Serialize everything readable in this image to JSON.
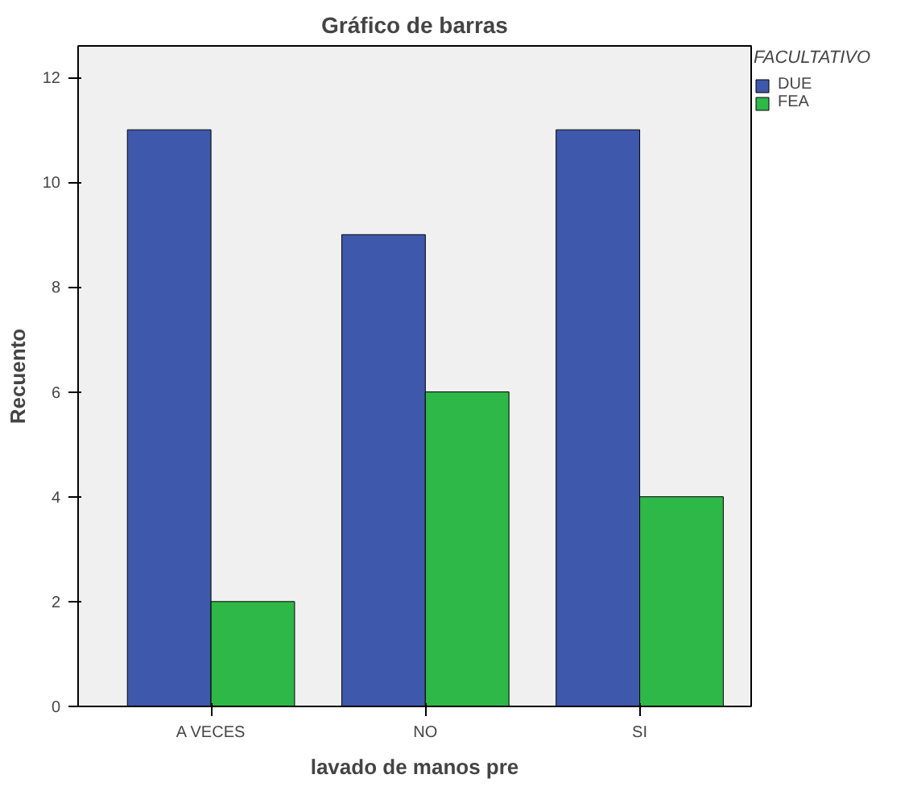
{
  "chart_data": {
    "type": "bar",
    "title": "Gráfico de barras",
    "xlabel": "lavado de manos pre",
    "ylabel": "Recuento",
    "legend_title": "FACULTATIVO",
    "categories": [
      "A VECES",
      "NO",
      "SI"
    ],
    "series": [
      {
        "name": "DUE",
        "color": "#3e58ac",
        "values": [
          11,
          9,
          11
        ]
      },
      {
        "name": "FEA",
        "color": "#2eb848",
        "values": [
          2,
          6,
          4
        ]
      }
    ],
    "ylim": [
      0,
      12.6
    ],
    "yticks": [
      0,
      2,
      4,
      6,
      8,
      10,
      12
    ],
    "legend": "top right"
  }
}
